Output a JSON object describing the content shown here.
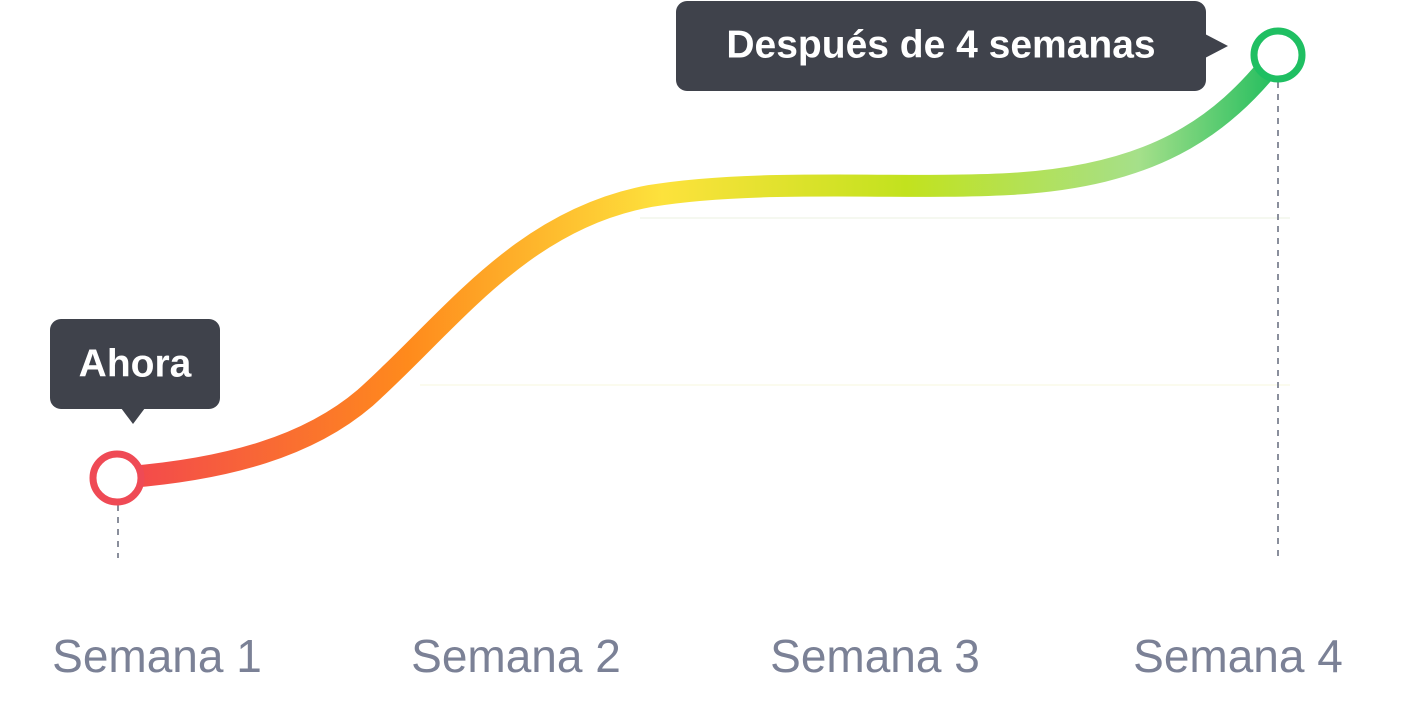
{
  "callouts": {
    "start": "Ahora",
    "end": "Después de 4 semanas"
  },
  "x_labels": [
    "Semana 1",
    "Semana 2",
    "Semana 3",
    "Semana 4"
  ]
}
